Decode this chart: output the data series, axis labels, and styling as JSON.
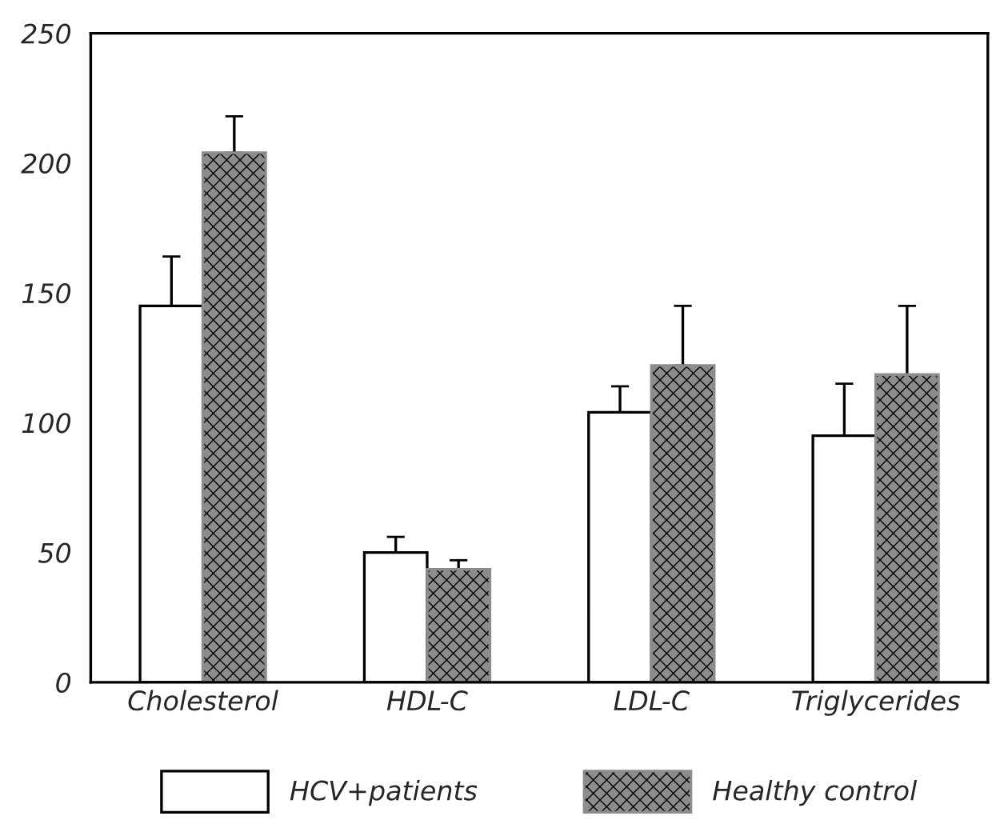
{
  "chart_data": {
    "type": "bar",
    "categories": [
      "Cholesterol",
      "HDL-C",
      "LDL-C",
      "Triglycerides"
    ],
    "series": [
      {
        "name": "HCV+patients",
        "color": "#ffffff",
        "values": [
          145,
          50,
          104,
          95
        ],
        "errors": [
          [
            145,
            164
          ],
          [
            50,
            56
          ],
          [
            104,
            114
          ],
          [
            95,
            115
          ]
        ]
      },
      {
        "name": "Healthy control",
        "color": "#8c8c8c",
        "values": [
          204,
          43.5,
          122,
          118.5
        ],
        "errors": [
          [
            204,
            218
          ],
          [
            43.5,
            47
          ],
          [
            122,
            145
          ],
          [
            118.5,
            145
          ]
        ]
      }
    ],
    "ylim": [
      0,
      250
    ],
    "yticks": [
      0,
      50,
      100,
      150,
      200,
      250
    ],
    "grid": false,
    "legend": "bottom"
  }
}
